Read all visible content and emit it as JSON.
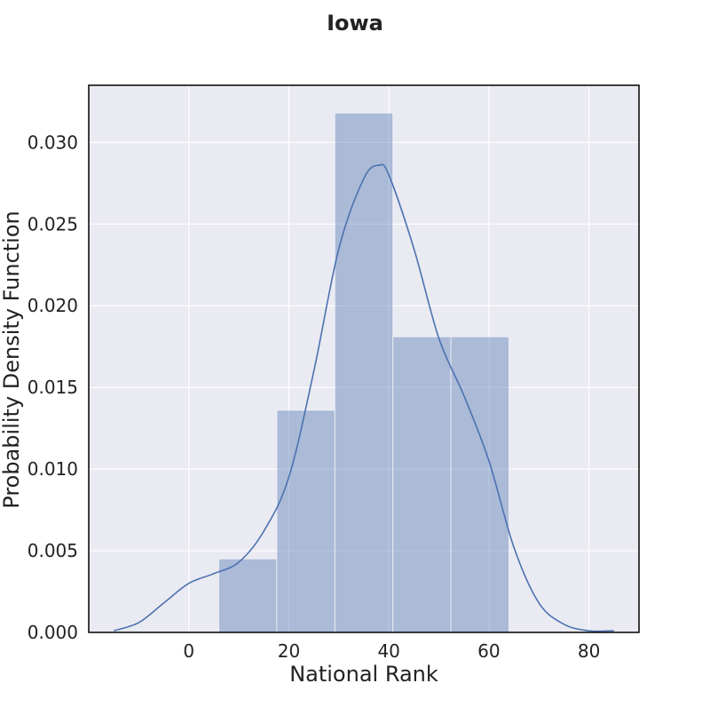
{
  "chart_data": {
    "type": "bar",
    "title": "Iowa",
    "xlabel": "National Rank",
    "ylabel": "Probability Density Function",
    "xlim": [
      -20,
      90
    ],
    "ylim": [
      0,
      0.0335
    ],
    "xticks": [
      0,
      20,
      40,
      60,
      80
    ],
    "xtick_labels": [
      "0",
      "20",
      "40",
      "60",
      "80"
    ],
    "yticks": [
      0,
      0.005,
      0.01,
      0.015,
      0.02,
      0.025,
      0.03
    ],
    "ytick_labels": [
      "0.000",
      "0.005",
      "0.010",
      "0.015",
      "0.020",
      "0.025",
      "0.030"
    ],
    "grid": true,
    "legend": "none",
    "histogram": {
      "bins": [
        {
          "x0": 6.0,
          "x1": 17.6,
          "density": 0.0045
        },
        {
          "x0": 17.6,
          "x1": 29.2,
          "density": 0.0136
        },
        {
          "x0": 29.2,
          "x1": 40.8,
          "density": 0.0318
        },
        {
          "x0": 40.8,
          "x1": 52.4,
          "density": 0.0181
        },
        {
          "x0": 52.4,
          "x1": 64.0,
          "density": 0.0181
        }
      ]
    },
    "kde": {
      "x": [
        -15,
        -10,
        -5,
        0,
        5,
        10,
        15,
        20,
        25,
        30,
        35,
        38,
        40,
        45,
        50,
        55,
        60,
        65,
        70,
        75,
        80,
        85
      ],
      "y": [
        0.0001,
        0.0006,
        0.0018,
        0.003,
        0.0036,
        0.0043,
        0.0062,
        0.0095,
        0.016,
        0.0235,
        0.0278,
        0.0286,
        0.028,
        0.0235,
        0.018,
        0.0145,
        0.0105,
        0.0052,
        0.0018,
        0.0005,
        0.0001,
        0.0001
      ]
    },
    "colors": {
      "background": "#eaeaf2",
      "grid": "#ffffff",
      "bar_fill": "#4c72b0",
      "bar_opacity": 0.4,
      "kde_line": "#4c72b0",
      "frame": "#000000"
    }
  }
}
